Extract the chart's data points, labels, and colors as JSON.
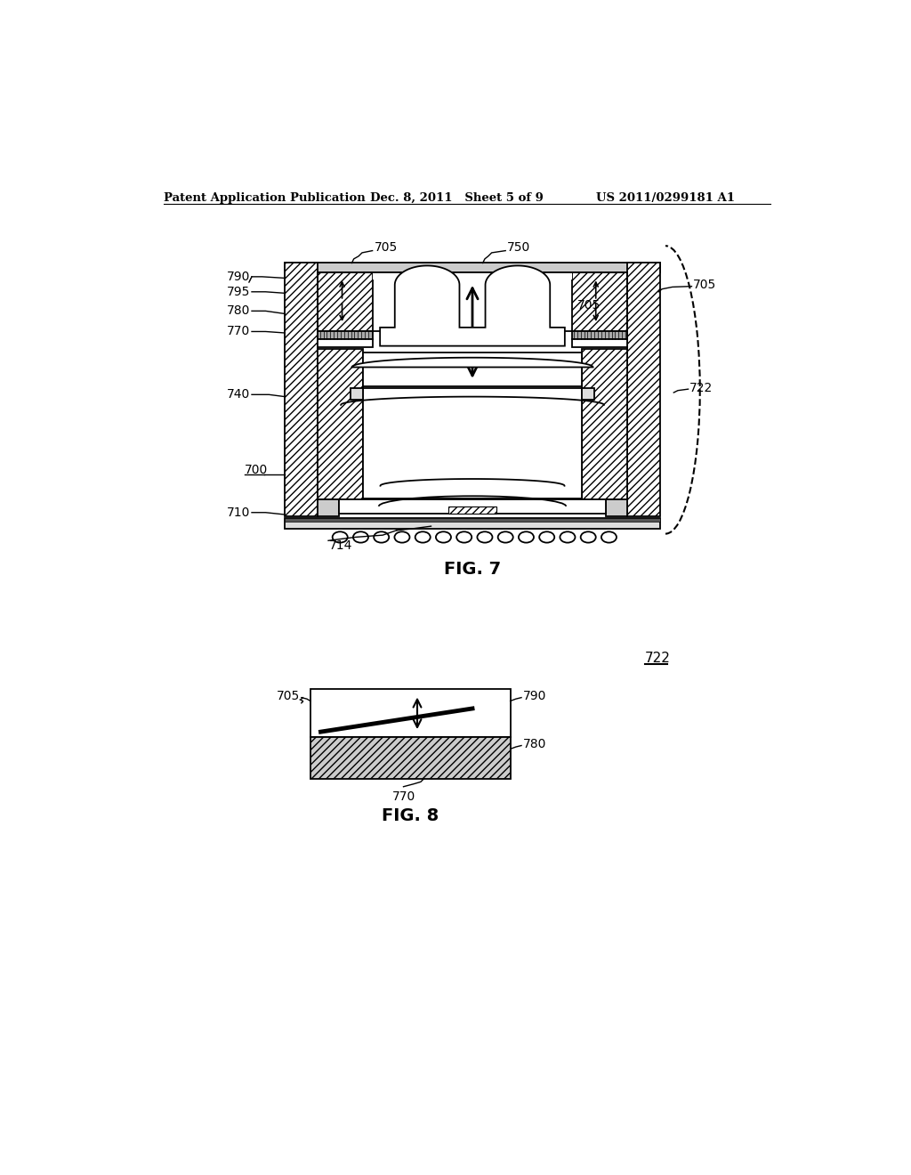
{
  "bg_color": "#ffffff",
  "header_left": "Patent Application Publication",
  "header_mid": "Dec. 8, 2011   Sheet 5 of 9",
  "header_right": "US 2011/0299181 A1",
  "fig7_label": "FIG. 7",
  "fig8_label": "FIG. 8"
}
